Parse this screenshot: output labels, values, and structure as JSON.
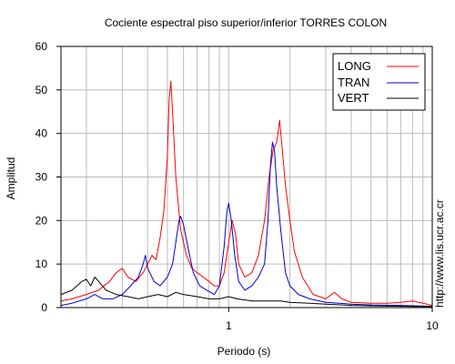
{
  "chart_data": {
    "type": "line",
    "title": "Cociente espectral piso superior/inferior  TORRES COLON",
    "xlabel": "Periodo (s)",
    "ylabel": "Amplitud",
    "x_scale": "log",
    "xlim": [
      0.15,
      10
    ],
    "ylim": [
      0,
      60
    ],
    "x_tick_labels": [
      "1",
      "10"
    ],
    "y_tick_labels": [
      "0",
      "10",
      "20",
      "30",
      "40",
      "50",
      "60"
    ],
    "grid": true,
    "legend_position": "top-right",
    "series": [
      {
        "name": "LONG",
        "color": "#ff0000",
        "points": [
          [
            0.15,
            1.5
          ],
          [
            0.17,
            2
          ],
          [
            0.2,
            3
          ],
          [
            0.23,
            4
          ],
          [
            0.26,
            6
          ],
          [
            0.28,
            8
          ],
          [
            0.3,
            9
          ],
          [
            0.32,
            7
          ],
          [
            0.35,
            6
          ],
          [
            0.38,
            8
          ],
          [
            0.4,
            10
          ],
          [
            0.42,
            12
          ],
          [
            0.44,
            11
          ],
          [
            0.46,
            16
          ],
          [
            0.48,
            22
          ],
          [
            0.5,
            35
          ],
          [
            0.51,
            48
          ],
          [
            0.52,
            52
          ],
          [
            0.53,
            45
          ],
          [
            0.55,
            30
          ],
          [
            0.58,
            18
          ],
          [
            0.62,
            12
          ],
          [
            0.66,
            9
          ],
          [
            0.7,
            8
          ],
          [
            0.75,
            7
          ],
          [
            0.8,
            6
          ],
          [
            0.85,
            5
          ],
          [
            0.9,
            5
          ],
          [
            0.95,
            8
          ],
          [
            1.0,
            15
          ],
          [
            1.04,
            20
          ],
          [
            1.08,
            17
          ],
          [
            1.12,
            10
          ],
          [
            1.2,
            7
          ],
          [
            1.3,
            8
          ],
          [
            1.4,
            12
          ],
          [
            1.5,
            20
          ],
          [
            1.58,
            30
          ],
          [
            1.65,
            36
          ],
          [
            1.72,
            38
          ],
          [
            1.78,
            43
          ],
          [
            1.82,
            38
          ],
          [
            1.9,
            28
          ],
          [
            2.0,
            20
          ],
          [
            2.1,
            13
          ],
          [
            2.3,
            7
          ],
          [
            2.6,
            3
          ],
          [
            3.0,
            2
          ],
          [
            3.3,
            3.5
          ],
          [
            3.6,
            2
          ],
          [
            4.0,
            1.2
          ],
          [
            5.0,
            1
          ],
          [
            6.0,
            1
          ],
          [
            7.0,
            1.2
          ],
          [
            8.0,
            1.5
          ],
          [
            9.0,
            1
          ],
          [
            10.0,
            0.5
          ]
        ]
      },
      {
        "name": "TRAN",
        "color": "#0000cc",
        "points": [
          [
            0.15,
            0.5
          ],
          [
            0.17,
            1
          ],
          [
            0.2,
            2
          ],
          [
            0.22,
            3
          ],
          [
            0.24,
            2
          ],
          [
            0.27,
            2
          ],
          [
            0.3,
            3
          ],
          [
            0.33,
            5
          ],
          [
            0.36,
            7
          ],
          [
            0.38,
            10
          ],
          [
            0.39,
            12
          ],
          [
            0.4,
            9
          ],
          [
            0.43,
            6
          ],
          [
            0.46,
            5
          ],
          [
            0.5,
            7
          ],
          [
            0.53,
            10
          ],
          [
            0.55,
            15
          ],
          [
            0.57,
            20
          ],
          [
            0.58,
            21
          ],
          [
            0.6,
            19
          ],
          [
            0.63,
            14
          ],
          [
            0.67,
            8
          ],
          [
            0.72,
            5
          ],
          [
            0.78,
            4
          ],
          [
            0.85,
            3
          ],
          [
            0.9,
            5
          ],
          [
            0.95,
            14
          ],
          [
            0.98,
            22
          ],
          [
            1.0,
            24
          ],
          [
            1.03,
            20
          ],
          [
            1.07,
            12
          ],
          [
            1.12,
            6
          ],
          [
            1.2,
            4
          ],
          [
            1.3,
            5
          ],
          [
            1.4,
            7
          ],
          [
            1.5,
            10
          ],
          [
            1.56,
            20
          ],
          [
            1.6,
            32
          ],
          [
            1.64,
            38
          ],
          [
            1.68,
            36
          ],
          [
            1.72,
            28
          ],
          [
            1.8,
            18
          ],
          [
            1.9,
            8
          ],
          [
            2.0,
            5
          ],
          [
            2.2,
            3
          ],
          [
            2.5,
            2
          ],
          [
            3.0,
            1.2
          ],
          [
            4.0,
            0.8
          ],
          [
            5.0,
            0.6
          ],
          [
            7.0,
            0.5
          ],
          [
            10.0,
            0.3
          ]
        ]
      },
      {
        "name": "VERT",
        "color": "#000000",
        "points": [
          [
            0.15,
            3
          ],
          [
            0.17,
            4
          ],
          [
            0.19,
            6
          ],
          [
            0.2,
            6.5
          ],
          [
            0.21,
            5
          ],
          [
            0.22,
            7
          ],
          [
            0.23,
            6
          ],
          [
            0.25,
            4
          ],
          [
            0.28,
            3
          ],
          [
            0.32,
            2.5
          ],
          [
            0.36,
            2
          ],
          [
            0.4,
            2.5
          ],
          [
            0.45,
            3
          ],
          [
            0.5,
            2.5
          ],
          [
            0.55,
            3.5
          ],
          [
            0.6,
            3
          ],
          [
            0.7,
            2.5
          ],
          [
            0.8,
            2
          ],
          [
            0.9,
            2
          ],
          [
            1.0,
            2.5
          ],
          [
            1.1,
            2
          ],
          [
            1.3,
            1.5
          ],
          [
            1.5,
            1.5
          ],
          [
            1.8,
            1.5
          ],
          [
            2.0,
            1.2
          ],
          [
            2.5,
            1
          ],
          [
            3.0,
            0.8
          ],
          [
            4.0,
            0.5
          ],
          [
            5.0,
            0.4
          ],
          [
            7.0,
            0.3
          ],
          [
            10.0,
            0.2
          ]
        ]
      }
    ]
  },
  "credit": "http://www.lis.ucr.ac.cr"
}
